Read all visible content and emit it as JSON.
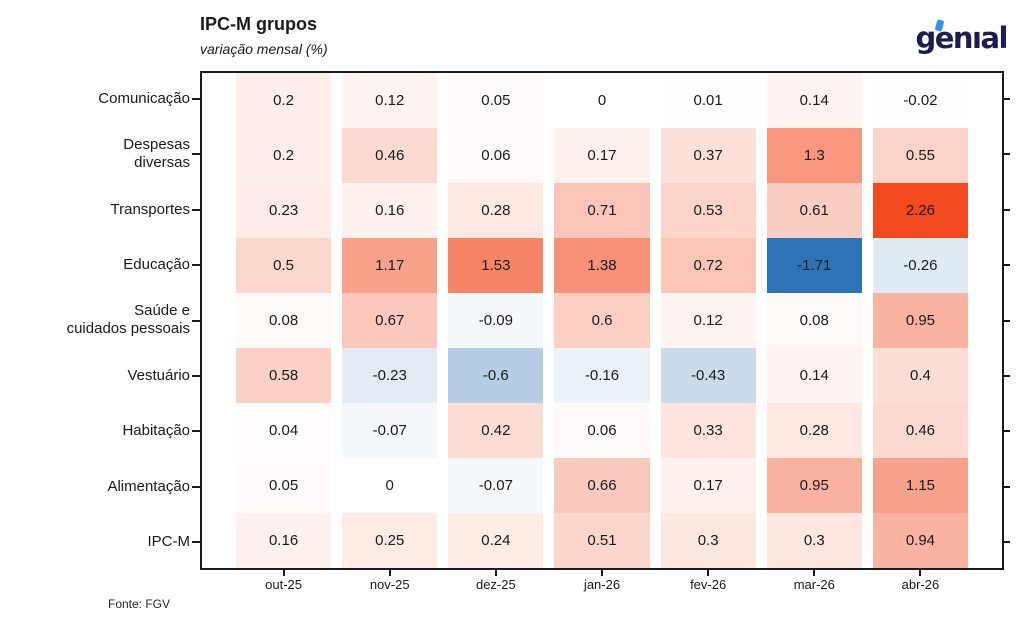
{
  "header": {
    "logo_text": "genıal"
  },
  "chart_data": {
    "type": "heatmap",
    "title": "IPC-M grupos",
    "subtitle": "variação mensal (%)",
    "source": "Fonte: FGV",
    "x_labels": [
      "out-25",
      "nov-25",
      "dez-25",
      "jan-26",
      "fev-26",
      "mar-26",
      "abr-26"
    ],
    "y_labels": [
      "Comunicação",
      "Despesas\ndiversas",
      "Transportes",
      "Educação",
      "Saúde e\ncuidados pessoais",
      "Vestuário",
      "Habitação",
      "Alimentação",
      "IPC-M"
    ],
    "values": [
      [
        0.2,
        0.12,
        0.05,
        0,
        0.01,
        0.14,
        -0.02
      ],
      [
        0.2,
        0.46,
        0.06,
        0.17,
        0.37,
        1.3,
        0.55
      ],
      [
        0.23,
        0.16,
        0.28,
        0.71,
        0.53,
        0.61,
        2.26
      ],
      [
        0.5,
        1.17,
        1.53,
        1.38,
        0.72,
        -1.71,
        -0.26
      ],
      [
        0.08,
        0.67,
        -0.09,
        0.6,
        0.12,
        0.08,
        0.95
      ],
      [
        0.58,
        -0.23,
        -0.6,
        -0.16,
        -0.43,
        0.14,
        0.4
      ],
      [
        0.04,
        -0.07,
        0.42,
        0.06,
        0.33,
        0.28,
        0.46
      ],
      [
        0.05,
        0,
        -0.07,
        0.66,
        0.17,
        0.95,
        1.15
      ],
      [
        0.16,
        0.25,
        0.24,
        0.51,
        0.3,
        0.3,
        0.94
      ]
    ],
    "color_scale": {
      "zero_color": "#ffffff",
      "positive_color": "#f2491f",
      "negative_color": "#2e73b5",
      "positive_domain_max": 2.26,
      "negative_domain_max": 1.71
    },
    "layout": {
      "grid": "off",
      "legend": "none",
      "value_labels": "shown in cells"
    }
  }
}
